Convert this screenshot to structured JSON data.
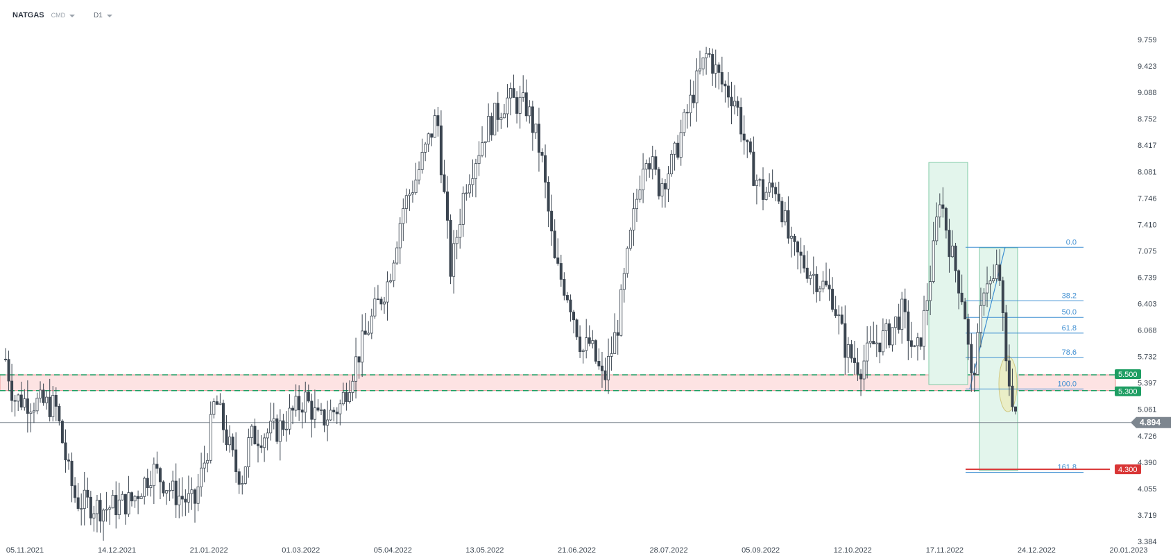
{
  "header": {
    "symbol": "NATGAS",
    "instrument_type": "CMD",
    "timeframe": "D1"
  },
  "price_axis": {
    "ticks": [
      "9.759",
      "9.423",
      "9.088",
      "8.752",
      "8.417",
      "8.081",
      "7.746",
      "7.410",
      "7.075",
      "6.739",
      "6.403",
      "6.068",
      "5.732",
      "5.397",
      "5.061",
      "4.726",
      "4.390",
      "4.055",
      "3.719",
      "3.384"
    ]
  },
  "time_axis": {
    "ticks": [
      "05.11.2021",
      "14.12.2021",
      "21.01.2022",
      "01.03.2022",
      "05.04.2022",
      "13.05.2022",
      "21.06.2022",
      "28.07.2022",
      "05.09.2022",
      "12.10.2022",
      "17.11.2022",
      "24.12.2022",
      "20.01.2023"
    ]
  },
  "current_price": {
    "label": "4.894",
    "value": 4.894
  },
  "levels": [
    {
      "label": "5.500",
      "value": 5.5,
      "color": "#1e9e63"
    },
    {
      "label": "5.300",
      "value": 5.3,
      "color": "#1e9e63"
    },
    {
      "label": "4.300",
      "value": 4.3,
      "color": "#d93636"
    }
  ],
  "fibonacci": {
    "levels": [
      {
        "label": "0.0",
        "value": 7.12
      },
      {
        "label": "38.2",
        "value": 6.44
      },
      {
        "label": "50.0",
        "value": 6.23
      },
      {
        "label": "61.8",
        "value": 6.03
      },
      {
        "label": "78.6",
        "value": 5.72
      },
      {
        "label": "100.0",
        "value": 5.32
      },
      {
        "label": "161.8",
        "value": 4.26
      }
    ],
    "color": "#3f8fd2"
  },
  "colors": {
    "candle": "#3b4550",
    "zone_fill": "#fde3e3",
    "zone_border": "#e89090",
    "box_fill": "#e3f5ec",
    "box_border": "#7fcaa6",
    "axis_text": "#3b4550",
    "price_line": "#7d868f",
    "current_tag": "#7d868f"
  }
}
